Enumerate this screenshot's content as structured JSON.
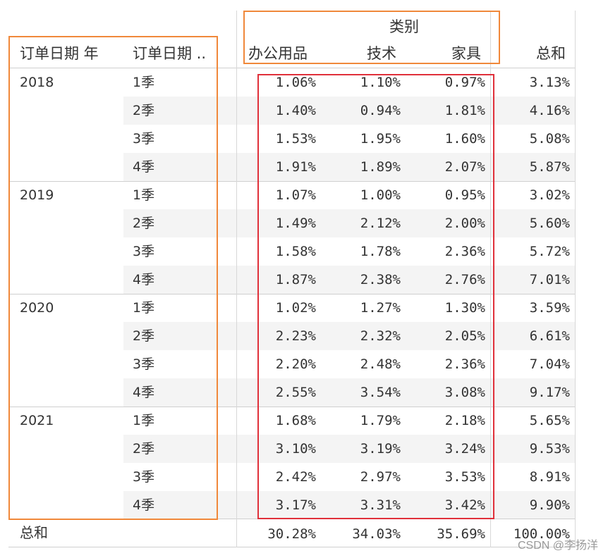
{
  "header": {
    "category_title": "类别",
    "col_year": "订单日期 年",
    "col_quarter": "订单日期 ..",
    "columns": [
      "办公用品",
      "技术",
      "家具"
    ],
    "total_label": "总和"
  },
  "groups": [
    {
      "year": "2018",
      "rows": [
        {
          "quarter": "1季",
          "values": [
            "1.06%",
            "1.10%",
            "0.97%"
          ],
          "total": "3.13%"
        },
        {
          "quarter": "2季",
          "values": [
            "1.40%",
            "0.94%",
            "1.81%"
          ],
          "total": "4.16%"
        },
        {
          "quarter": "3季",
          "values": [
            "1.53%",
            "1.95%",
            "1.60%"
          ],
          "total": "5.08%"
        },
        {
          "quarter": "4季",
          "values": [
            "1.91%",
            "1.89%",
            "2.07%"
          ],
          "total": "5.87%"
        }
      ]
    },
    {
      "year": "2019",
      "rows": [
        {
          "quarter": "1季",
          "values": [
            "1.07%",
            "1.00%",
            "0.95%"
          ],
          "total": "3.02%"
        },
        {
          "quarter": "2季",
          "values": [
            "1.49%",
            "2.12%",
            "2.00%"
          ],
          "total": "5.60%"
        },
        {
          "quarter": "3季",
          "values": [
            "1.58%",
            "1.78%",
            "2.36%"
          ],
          "total": "5.72%"
        },
        {
          "quarter": "4季",
          "values": [
            "1.87%",
            "2.38%",
            "2.76%"
          ],
          "total": "7.01%"
        }
      ]
    },
    {
      "year": "2020",
      "rows": [
        {
          "quarter": "1季",
          "values": [
            "1.02%",
            "1.27%",
            "1.30%"
          ],
          "total": "3.59%"
        },
        {
          "quarter": "2季",
          "values": [
            "2.23%",
            "2.32%",
            "2.05%"
          ],
          "total": "6.61%"
        },
        {
          "quarter": "3季",
          "values": [
            "2.20%",
            "2.48%",
            "2.36%"
          ],
          "total": "7.04%"
        },
        {
          "quarter": "4季",
          "values": [
            "2.55%",
            "3.54%",
            "3.08%"
          ],
          "total": "9.17%"
        }
      ]
    },
    {
      "year": "2021",
      "rows": [
        {
          "quarter": "1季",
          "values": [
            "1.68%",
            "1.79%",
            "2.18%"
          ],
          "total": "5.65%"
        },
        {
          "quarter": "2季",
          "values": [
            "3.10%",
            "3.19%",
            "3.24%"
          ],
          "total": "9.53%"
        },
        {
          "quarter": "3季",
          "values": [
            "2.42%",
            "2.97%",
            "3.53%"
          ],
          "total": "8.91%"
        },
        {
          "quarter": "4季",
          "values": [
            "3.17%",
            "3.31%",
            "3.42%"
          ],
          "total": "9.90%"
        }
      ]
    }
  ],
  "grand_total": {
    "label": "总和",
    "values": [
      "30.28%",
      "34.03%",
      "35.69%"
    ],
    "total": "100.00%"
  },
  "watermark": "CSDN @李扬洋",
  "colors": {
    "highlight_orange": "#f0883a",
    "highlight_red": "#e0303a",
    "stripe": "#f4f4f4"
  }
}
